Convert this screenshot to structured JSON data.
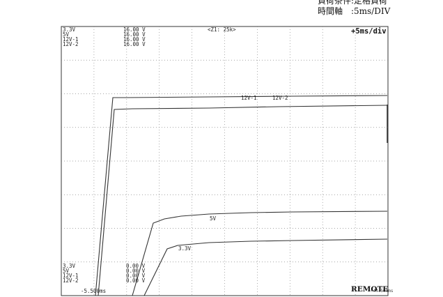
{
  "caption": {
    "load_condition": "負荷条件:定格負荷",
    "time_axis": "時間軸　:5ms/DIV"
  },
  "scope": {
    "channels_top": [
      "3.3V",
      "5V",
      "12V-1",
      "12V-2"
    ],
    "scales_top": [
      "16.00 V",
      "16.00 V",
      "16.00 V",
      "16.00 V"
    ],
    "zoom_label": "<Z1: 25k>",
    "timebase_label": "+5ms/div",
    "channels_bottom": [
      "3.3V",
      "5V",
      "12V-1",
      "12V-2"
    ],
    "offsets_bottom": [
      "0.00 V",
      "0.00 V",
      "0.00 V",
      "0.00 V"
    ],
    "trigger_time": "-5.500ms",
    "remote_label": "REMOTE",
    "end_time": "+44.500ms",
    "trace_labels": {
      "v12_1": "12V-1",
      "v12_2": "12V-2",
      "v5": "5V",
      "v3_3": "3.3V"
    }
  }
}
